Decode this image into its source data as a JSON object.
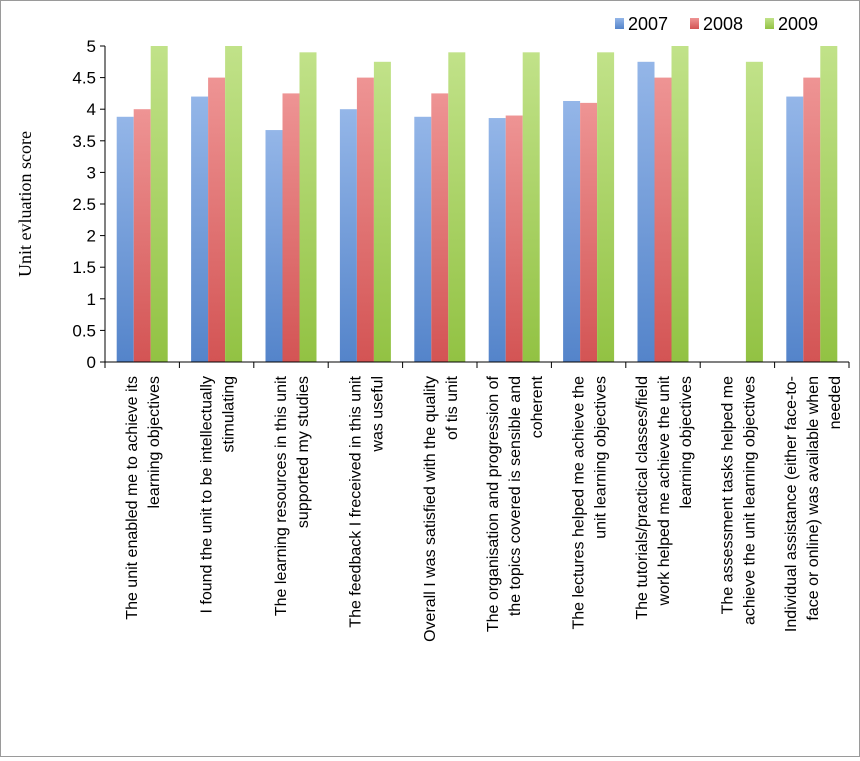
{
  "chart_data": {
    "type": "bar",
    "title": "",
    "xlabel": "",
    "ylabel": "Unit evluation score",
    "ylim": [
      0,
      5
    ],
    "yticks": [
      "0",
      "0.5",
      "1",
      "1.5",
      "2",
      "2.5",
      "3",
      "3.5",
      "4",
      "4.5",
      "5"
    ],
    "grid": false,
    "legend_position": "top-right",
    "categories": [
      [
        "The unit enabled me to achieve its",
        "learning objectives"
      ],
      [
        "I found the unit to be intellectually",
        "stimulating"
      ],
      [
        "The learning resources in this unit",
        "supported my studies"
      ],
      [
        "The feedback I freceived in this unit",
        "was useful"
      ],
      [
        "Overall I was satisfied with the quality",
        "of tis unit"
      ],
      [
        "The organisation and progression of",
        "the topics covered is sensible and",
        "coherent"
      ],
      [
        "The lectures helped me achieve the",
        "unit learning objectives"
      ],
      [
        "The tutorials/practical classes/field",
        "work helped me achieve the unit",
        "learning objectives"
      ],
      [
        "The assessment tasks helped me",
        "achieve the unit learning objectives"
      ],
      [
        "Individual assistance (either face-to-",
        "face or online) was available when",
        "needed"
      ]
    ],
    "series": [
      {
        "name": "2007",
        "color": "#5b8fdc",
        "values": [
          3.88,
          4.2,
          3.67,
          4.0,
          3.88,
          3.86,
          4.13,
          4.75,
          null,
          4.2
        ]
      },
      {
        "name": "2008",
        "color": "#e55b5b",
        "values": [
          4.0,
          4.5,
          4.25,
          4.5,
          4.25,
          3.9,
          4.1,
          4.5,
          null,
          4.5
        ]
      },
      {
        "name": "2009",
        "color": "#9fd349",
        "values": [
          5.0,
          5.0,
          4.9,
          4.75,
          4.9,
          4.9,
          4.9,
          5.0,
          4.75,
          5.0
        ]
      }
    ]
  }
}
